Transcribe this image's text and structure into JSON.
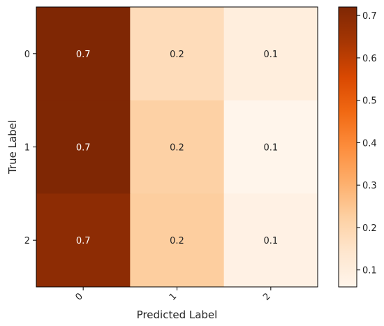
{
  "chart_data": {
    "type": "heatmap",
    "title": "",
    "xlabel": "Predicted Label",
    "ylabel": "True Label",
    "x_categories": [
      "0",
      "1",
      "2"
    ],
    "y_categories": [
      "0",
      "1",
      "2"
    ],
    "values": [
      [
        0.72,
        0.18,
        0.1
      ],
      [
        0.72,
        0.22,
        0.06
      ],
      [
        0.69,
        0.23,
        0.08
      ]
    ],
    "annotations": [
      [
        "0.7",
        "0.2",
        "0.1"
      ],
      [
        "0.7",
        "0.2",
        "0.1"
      ],
      [
        "0.7",
        "0.2",
        "0.1"
      ]
    ],
    "colormap": "Oranges",
    "colorbar": {
      "range": [
        0.06,
        0.72
      ],
      "ticks": [
        0.1,
        0.2,
        0.3,
        0.4,
        0.5,
        0.6,
        0.7
      ],
      "tick_labels": [
        "0.1",
        "0.2",
        "0.3",
        "0.4",
        "0.5",
        "0.6",
        "0.7"
      ]
    },
    "annotation_colors": {
      "light": "#ffffff",
      "dark": "#222222"
    },
    "colormap_stops": [
      "#fff5eb",
      "#fee6ce",
      "#fdd0a2",
      "#fdae6b",
      "#fd8d3c",
      "#f16913",
      "#d94801",
      "#a63603",
      "#7f2704"
    ]
  }
}
